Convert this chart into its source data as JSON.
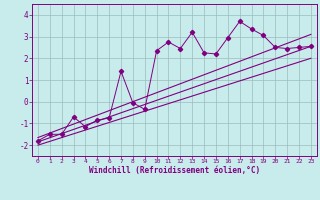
{
  "xlabel": "Windchill (Refroidissement éolien,°C)",
  "xlim": [
    -0.5,
    23.5
  ],
  "ylim": [
    -2.5,
    4.5
  ],
  "yticks": [
    -2,
    -1,
    0,
    1,
    2,
    3,
    4
  ],
  "xticks": [
    0,
    1,
    2,
    3,
    4,
    5,
    6,
    7,
    8,
    9,
    10,
    11,
    12,
    13,
    14,
    15,
    16,
    17,
    18,
    19,
    20,
    21,
    22,
    23
  ],
  "bg_color": "#c8ecec",
  "line_color": "#800080",
  "grid_color": "#9bbcbc",
  "data_x": [
    0,
    1,
    2,
    3,
    4,
    5,
    6,
    7,
    8,
    9,
    10,
    11,
    12,
    13,
    14,
    15,
    16,
    17,
    18,
    19,
    20,
    21,
    22,
    23
  ],
  "data_y": [
    -1.8,
    -1.5,
    -1.5,
    -0.7,
    -1.15,
    -0.85,
    -0.75,
    1.4,
    -0.05,
    -0.35,
    2.35,
    2.75,
    2.45,
    3.2,
    2.25,
    2.2,
    2.95,
    3.7,
    3.35,
    3.05,
    2.5,
    2.45,
    2.5,
    2.55
  ],
  "trend1_x": [
    0,
    23
  ],
  "trend1_y": [
    -2.0,
    2.0
  ],
  "trend2_x": [
    0,
    23
  ],
  "trend2_y": [
    -1.65,
    3.1
  ],
  "trend3_x": [
    0,
    23
  ],
  "trend3_y": [
    -1.85,
    2.55
  ]
}
